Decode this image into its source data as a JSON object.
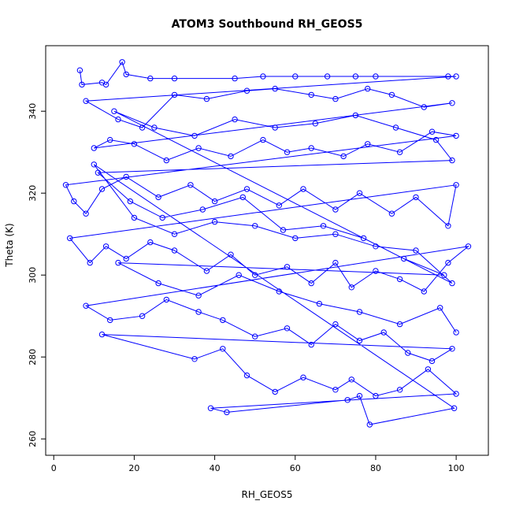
{
  "chart_data": {
    "type": "scatter",
    "title": "ATOM3 Southbound RH_GEOS5",
    "xlabel": "RH_GEOS5",
    "ylabel": "Theta (K)",
    "xlim": [
      -2,
      108
    ],
    "ylim": [
      256,
      356
    ],
    "xticks": [
      0,
      20,
      40,
      60,
      80,
      100
    ],
    "yticks": [
      260,
      280,
      300,
      320,
      340
    ],
    "grid": false,
    "legend": "none",
    "series": [
      {
        "color": "#0000ff",
        "marker": "open-circle",
        "connected": true,
        "points": [
          [
            6.5,
            350
          ],
          [
            7,
            346.5
          ],
          [
            12,
            347
          ],
          [
            13,
            346.5
          ],
          [
            17,
            352
          ],
          [
            18,
            349
          ],
          [
            24,
            348
          ],
          [
            30,
            348
          ],
          [
            45,
            348
          ],
          [
            52,
            348.5
          ],
          [
            60,
            348.5
          ],
          [
            68,
            348.5
          ],
          [
            75,
            348.5
          ],
          [
            80,
            348.5
          ],
          [
            98,
            348.5
          ],
          [
            100,
            348.5
          ],
          [
            8,
            342.5
          ],
          [
            16,
            338
          ],
          [
            22,
            336
          ],
          [
            30,
            344
          ],
          [
            38,
            343
          ],
          [
            48,
            345
          ],
          [
            55,
            345.5
          ],
          [
            64,
            344
          ],
          [
            70,
            343
          ],
          [
            78,
            345.5
          ],
          [
            84,
            344
          ],
          [
            92,
            341
          ],
          [
            99,
            342
          ],
          [
            10,
            331
          ],
          [
            14,
            333
          ],
          [
            20,
            332
          ],
          [
            28,
            328
          ],
          [
            36,
            331
          ],
          [
            44,
            329
          ],
          [
            52,
            333
          ],
          [
            58,
            330
          ],
          [
            64,
            331
          ],
          [
            72,
            329
          ],
          [
            78,
            332
          ],
          [
            86,
            330
          ],
          [
            94,
            335
          ],
          [
            100,
            334
          ],
          [
            3,
            322
          ],
          [
            5,
            318
          ],
          [
            8,
            315
          ],
          [
            12,
            321
          ],
          [
            18,
            324
          ],
          [
            26,
            319
          ],
          [
            34,
            322
          ],
          [
            40,
            318
          ],
          [
            48,
            321
          ],
          [
            56,
            317
          ],
          [
            62,
            321
          ],
          [
            70,
            316
          ],
          [
            76,
            320
          ],
          [
            84,
            315
          ],
          [
            90,
            319
          ],
          [
            98,
            312
          ],
          [
            100,
            322
          ],
          [
            4,
            309
          ],
          [
            9,
            303
          ],
          [
            13,
            307
          ],
          [
            18,
            304
          ],
          [
            24,
            308
          ],
          [
            30,
            306
          ],
          [
            38,
            301
          ],
          [
            44,
            305
          ],
          [
            50,
            300
          ],
          [
            58,
            302
          ],
          [
            64,
            298
          ],
          [
            70,
            303
          ],
          [
            74,
            297
          ],
          [
            80,
            301
          ],
          [
            86,
            299
          ],
          [
            92,
            296
          ],
          [
            98,
            303
          ],
          [
            103,
            307
          ],
          [
            8,
            292.5
          ],
          [
            14,
            289
          ],
          [
            22,
            290
          ],
          [
            28,
            294
          ],
          [
            36,
            291
          ],
          [
            42,
            289
          ],
          [
            50,
            285
          ],
          [
            58,
            287
          ],
          [
            64,
            283
          ],
          [
            70,
            288
          ],
          [
            76,
            284
          ],
          [
            82,
            286
          ],
          [
            88,
            281
          ],
          [
            94,
            279
          ],
          [
            99,
            282
          ],
          [
            12,
            285.5
          ],
          [
            35,
            279.5
          ],
          [
            42,
            282
          ],
          [
            48,
            275.5
          ],
          [
            55,
            271.5
          ],
          [
            62,
            275
          ],
          [
            70,
            272
          ],
          [
            74,
            274.5
          ],
          [
            80,
            270.5
          ],
          [
            86,
            272
          ],
          [
            93,
            277
          ],
          [
            100,
            271
          ],
          [
            39,
            267.5
          ],
          [
            43,
            266.5
          ],
          [
            73,
            269.5
          ],
          [
            76,
            270.5
          ],
          [
            78.5,
            263.5
          ],
          [
            99.5,
            267.5
          ],
          [
            10,
            327
          ],
          [
            20,
            314
          ],
          [
            30,
            310
          ],
          [
            40,
            313
          ],
          [
            50,
            312
          ],
          [
            60,
            309
          ],
          [
            70,
            310
          ],
          [
            80,
            307
          ],
          [
            90,
            306
          ],
          [
            99,
            298
          ],
          [
            15,
            340
          ],
          [
            25,
            336
          ],
          [
            35,
            334
          ],
          [
            45,
            338
          ],
          [
            55,
            336
          ],
          [
            65,
            337
          ],
          [
            75,
            339
          ],
          [
            85,
            336
          ],
          [
            95,
            333
          ],
          [
            99,
            328
          ],
          [
            11,
            325
          ],
          [
            19,
            318
          ],
          [
            27,
            314
          ],
          [
            37,
            316
          ],
          [
            47,
            319
          ],
          [
            57,
            311
          ],
          [
            67,
            312
          ],
          [
            77,
            309
          ],
          [
            87,
            304
          ],
          [
            97,
            300
          ],
          [
            16,
            303
          ],
          [
            26,
            298
          ],
          [
            36,
            295
          ],
          [
            46,
            300
          ],
          [
            56,
            296
          ],
          [
            66,
            293
          ],
          [
            76,
            291
          ],
          [
            86,
            288
          ],
          [
            96,
            292
          ],
          [
            100,
            286
          ]
        ]
      }
    ]
  }
}
